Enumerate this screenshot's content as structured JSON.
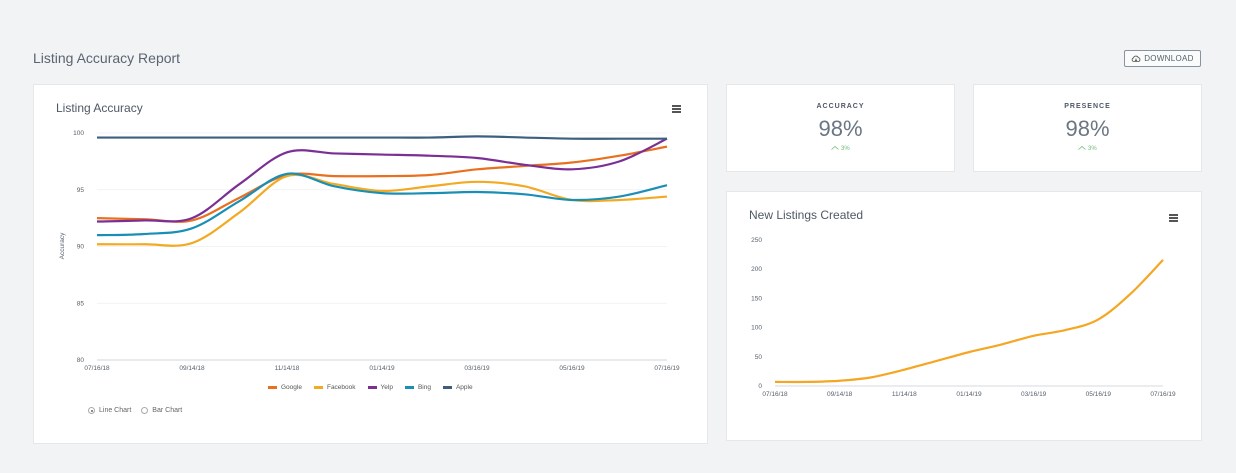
{
  "page": {
    "title": "Listing Accuracy Report"
  },
  "toolbar": {
    "download_label": "DOWNLOAD"
  },
  "accuracy_card": {
    "title": "Listing Accuracy",
    "y_axis_label": "Accuracy",
    "legend": [
      {
        "name": "Google",
        "color": "#e8701f"
      },
      {
        "name": "Facebook",
        "color": "#f2aa22"
      },
      {
        "name": "Yelp",
        "color": "#7b2f95"
      },
      {
        "name": "Bing",
        "color": "#1a8fb5"
      },
      {
        "name": "Apple",
        "color": "#3d5f7f"
      }
    ],
    "chart_type_options": [
      {
        "label": "Line Chart",
        "selected": true
      },
      {
        "label": "Bar Chart",
        "selected": false
      }
    ]
  },
  "stats": {
    "accuracy": {
      "label": "ACCURACY",
      "value": "98%",
      "change": "3%"
    },
    "presence": {
      "label": "PRESENCE",
      "value": "98%",
      "change": "3%"
    }
  },
  "listings_card": {
    "title": "New Listings Created"
  },
  "chart_data": [
    {
      "type": "line",
      "title": "Listing Accuracy",
      "xlabel": "",
      "ylabel": "Accuracy",
      "x_ticks": [
        "07/16/18",
        "09/14/18",
        "11/14/18",
        "01/14/19",
        "03/16/19",
        "05/16/19",
        "07/16/19"
      ],
      "y_ticks": [
        80,
        85,
        90,
        95,
        100
      ],
      "ylim": [
        80,
        100
      ],
      "x": [
        0,
        0.5,
        1,
        1.5,
        2,
        2.5,
        3,
        3.5,
        4,
        4.5,
        5,
        5.5,
        6
      ],
      "series": [
        {
          "name": "Google",
          "color": "#e8701f",
          "values": [
            92.5,
            92.4,
            92.3,
            94.3,
            96.3,
            96.2,
            96.2,
            96.3,
            96.8,
            97.1,
            97.4,
            98.0,
            98.8
          ]
        },
        {
          "name": "Facebook",
          "color": "#f2aa22",
          "values": [
            90.2,
            90.2,
            90.3,
            93.0,
            96.2,
            95.5,
            94.9,
            95.3,
            95.7,
            95.3,
            94.1,
            94.1,
            94.4
          ]
        },
        {
          "name": "Yelp",
          "color": "#7b2f95",
          "values": [
            92.2,
            92.3,
            92.5,
            95.5,
            98.3,
            98.2,
            98.1,
            98.0,
            97.8,
            97.2,
            96.8,
            97.5,
            99.5
          ]
        },
        {
          "name": "Bing",
          "color": "#1a8fb5",
          "values": [
            91.0,
            91.1,
            91.6,
            94.0,
            96.4,
            95.3,
            94.7,
            94.7,
            94.8,
            94.6,
            94.1,
            94.4,
            95.4
          ]
        },
        {
          "name": "Apple",
          "color": "#3d5f7f",
          "values": [
            99.6,
            99.6,
            99.6,
            99.6,
            99.6,
            99.6,
            99.6,
            99.6,
            99.7,
            99.6,
            99.5,
            99.5,
            99.5
          ]
        }
      ]
    },
    {
      "type": "line",
      "title": "New Listings Created",
      "xlabel": "",
      "ylabel": "",
      "x_ticks": [
        "07/16/18",
        "09/14/18",
        "11/14/18",
        "01/14/19",
        "03/16/19",
        "05/16/19",
        "07/16/19"
      ],
      "y_ticks": [
        0,
        50,
        100,
        150,
        200,
        250
      ],
      "ylim": [
        0,
        250
      ],
      "x": [
        0,
        0.5,
        1,
        1.5,
        2,
        2.5,
        3,
        3.5,
        4,
        4.5,
        5,
        5.5,
        6
      ],
      "series": [
        {
          "name": "New Listings",
          "color": "#f5a623",
          "values": [
            7,
            7,
            9,
            15,
            28,
            43,
            58,
            71,
            86,
            96,
            114,
            158,
            216
          ]
        }
      ]
    }
  ]
}
